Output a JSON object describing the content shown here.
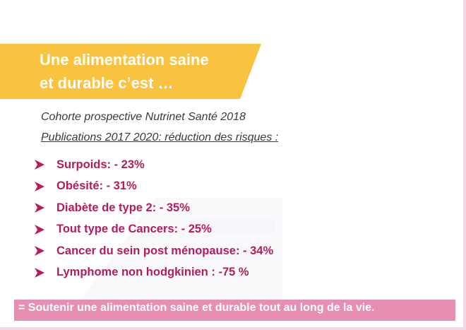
{
  "title": {
    "line1": "Une alimentation saine",
    "line2": "et durable c’est …"
  },
  "subtitle": "Cohorte prospective Nutrinet Santé 2018",
  "publications": "Publications 2017 2020:  réduction des risques :",
  "risks": [
    "Surpoids:  - 23%",
    "Obésité: - 31%",
    "Diabète de type 2: - 35%",
    "Tout type de Cancers: - 25%",
    "Cancer du sein post ménopause: - 34%",
    "Lymphome non hodgkinien : -75 %"
  ],
  "footer": "= Soutenir une alimentation saine et durable tout au long de la vie.",
  "icons": {
    "bullet": "arrow-bullet-icon"
  },
  "colors": {
    "banner": "#f9c340",
    "risk_text": "#b51c5f",
    "footer_bg": "#e78fb2",
    "bullet": "#b51c5f"
  }
}
